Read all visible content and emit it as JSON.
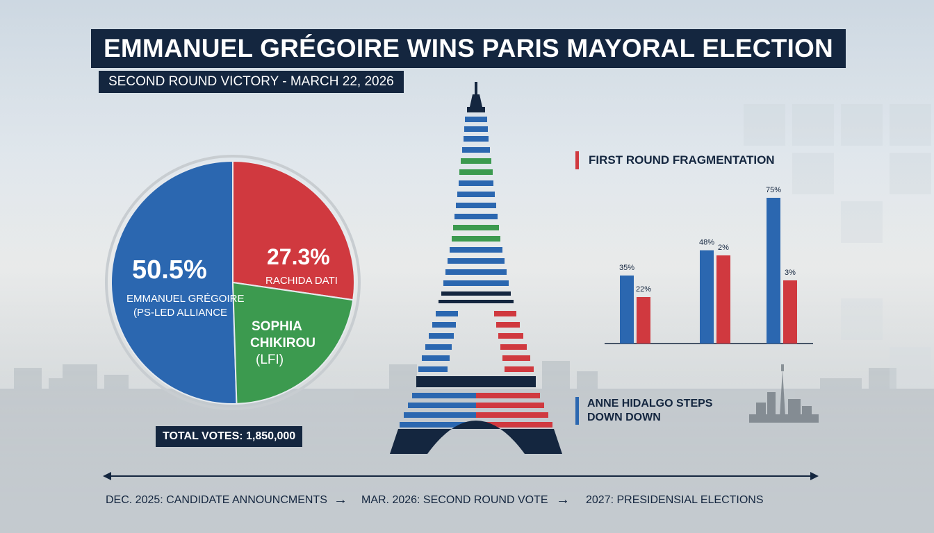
{
  "header": {
    "title": "EMMANUEL GRÉGOIRE WINS PARIS MAYORAL ELECTION",
    "subtitle": "SECOND ROUND VICTORY - MARCH 22, 2026"
  },
  "colors": {
    "blue": "#2b67b0",
    "red": "#d0393f",
    "green": "#3c9a4f",
    "navy": "#14263f"
  },
  "chart_data": [
    {
      "type": "pie",
      "slices": [
        {
          "label_line1": "EMMANUEL GRÉGOIRE",
          "label_line2": "(PS-LED ALLIANCE",
          "value": 50.5,
          "value_label": "50.5%",
          "color": "#2b67b0"
        },
        {
          "label_line1": "RACHIDA DATI",
          "value": 27.3,
          "value_label": "27.3%",
          "color": "#d0393f"
        },
        {
          "label_line1": "SOPHIA",
          "label_line2": "CHIKIROU",
          "label_line3": "(LFI)",
          "value": 22.2,
          "color": "#3c9a4f"
        }
      ],
      "total_label": "TOTAL VOTES: 1,850,000"
    },
    {
      "type": "bar",
      "title": "FIRST ROUND FRAGMENTATION",
      "groups": [
        {
          "blue_value": 35,
          "blue_label": "35%",
          "red_value": 22,
          "red_label": "22%"
        },
        {
          "blue_value": 48,
          "blue_label": "48%",
          "red_value": 2,
          "red_label": "2%"
        },
        {
          "blue_value": 75,
          "blue_label": "75%",
          "red_value": 3,
          "red_label": "3%"
        }
      ],
      "grid": false
    }
  ],
  "side_note": "ANNE HIDALGO STEPS DOWN DOWN",
  "timeline": [
    {
      "text": "DEC. 2025: CANDIDATE ANNOUNCMENTS"
    },
    {
      "text": "MAR. 2026: SECOND ROUND VOTE"
    },
    {
      "text": "2027: PRESIDENSIAL ELECTIONS"
    }
  ],
  "icons": {
    "eiffel": "eiffel-tower-icon",
    "skyline": "paris-skyline-icon",
    "arrow": "→"
  }
}
